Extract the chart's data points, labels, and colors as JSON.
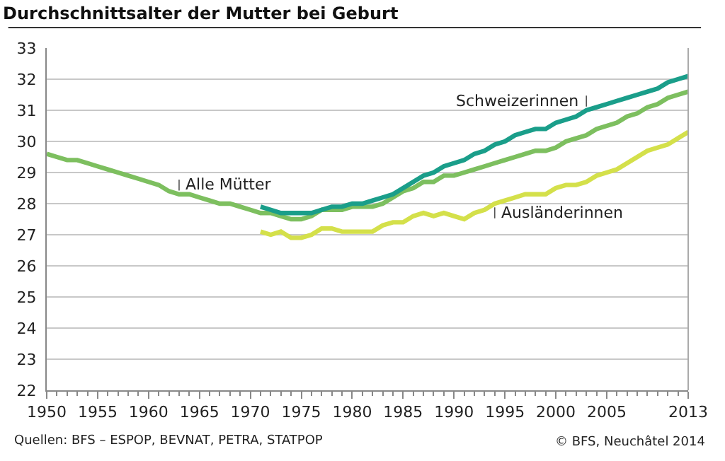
{
  "chart_data": {
    "type": "line",
    "title": "Durchschnittsalter der Mutter bei Geburt",
    "xlim": [
      1950,
      2013
    ],
    "xticks": [
      1950,
      1955,
      1960,
      1965,
      1970,
      1975,
      1980,
      1985,
      1990,
      1995,
      2000,
      2005,
      2013
    ],
    "ylim": [
      22,
      33
    ],
    "yticks": [
      22,
      23,
      24,
      25,
      26,
      27,
      28,
      29,
      30,
      31,
      32,
      33
    ],
    "grid": "y",
    "legend": false,
    "marker": "none",
    "line_style": "solid",
    "annotations": [
      "Quellen: BFS – ESPOP, BEVNAT, PETRA, STATPOP",
      "© BFS, Neuchâtel 2014"
    ],
    "series": [
      {
        "name": "Alle Mütter",
        "color": "#7dbf5f",
        "x": [
          1950,
          1951,
          1952,
          1953,
          1954,
          1955,
          1956,
          1957,
          1958,
          1959,
          1960,
          1961,
          1962,
          1963,
          1964,
          1965,
          1966,
          1967,
          1968,
          1969,
          1970,
          1971,
          1972,
          1973,
          1974,
          1975,
          1976,
          1977,
          1978,
          1979,
          1980,
          1981,
          1982,
          1983,
          1984,
          1985,
          1986,
          1987,
          1988,
          1989,
          1990,
          1991,
          1992,
          1993,
          1994,
          1995,
          1996,
          1997,
          1998,
          1999,
          2000,
          2001,
          2002,
          2003,
          2004,
          2005,
          2006,
          2007,
          2008,
          2009,
          2010,
          2011,
          2012,
          2013
        ],
        "values": [
          29.6,
          29.5,
          29.4,
          29.4,
          29.3,
          29.2,
          29.1,
          29.0,
          28.9,
          28.8,
          28.7,
          28.6,
          28.4,
          28.3,
          28.3,
          28.2,
          28.1,
          28.0,
          28.0,
          27.9,
          27.8,
          27.7,
          27.7,
          27.6,
          27.5,
          27.5,
          27.6,
          27.8,
          27.8,
          27.8,
          27.9,
          27.9,
          27.9,
          28.0,
          28.2,
          28.4,
          28.5,
          28.7,
          28.7,
          28.9,
          28.9,
          29.0,
          29.1,
          29.2,
          29.3,
          29.4,
          29.5,
          29.6,
          29.7,
          29.7,
          29.8,
          30.0,
          30.1,
          30.2,
          30.4,
          30.5,
          30.6,
          30.8,
          30.9,
          31.1,
          31.2,
          31.4,
          31.5,
          31.6
        ]
      },
      {
        "name": "Schweizerinnen",
        "color": "#1a9e8a",
        "x": [
          1971,
          1972,
          1973,
          1974,
          1975,
          1976,
          1977,
          1978,
          1979,
          1980,
          1981,
          1982,
          1983,
          1984,
          1985,
          1986,
          1987,
          1988,
          1989,
          1990,
          1991,
          1992,
          1993,
          1994,
          1995,
          1996,
          1997,
          1998,
          1999,
          2000,
          2001,
          2002,
          2003,
          2004,
          2005,
          2006,
          2007,
          2008,
          2009,
          2010,
          2011,
          2012,
          2013
        ],
        "values": [
          27.9,
          27.8,
          27.7,
          27.7,
          27.7,
          27.7,
          27.8,
          27.9,
          27.9,
          28.0,
          28.0,
          28.1,
          28.2,
          28.3,
          28.5,
          28.7,
          28.9,
          29.0,
          29.2,
          29.3,
          29.4,
          29.6,
          29.7,
          29.9,
          30.0,
          30.2,
          30.3,
          30.4,
          30.4,
          30.6,
          30.7,
          30.8,
          31.0,
          31.1,
          31.2,
          31.3,
          31.4,
          31.5,
          31.6,
          31.7,
          31.9,
          32.0,
          32.1
        ]
      },
      {
        "name": "Ausländerinnen",
        "color": "#d4e04a",
        "x": [
          1971,
          1972,
          1973,
          1974,
          1975,
          1976,
          1977,
          1978,
          1979,
          1980,
          1981,
          1982,
          1983,
          1984,
          1985,
          1986,
          1987,
          1988,
          1989,
          1990,
          1991,
          1992,
          1993,
          1994,
          1995,
          1996,
          1997,
          1998,
          1999,
          2000,
          2001,
          2002,
          2003,
          2004,
          2005,
          2006,
          2007,
          2008,
          2009,
          2010,
          2011,
          2012,
          2013
        ],
        "values": [
          27.1,
          27.0,
          27.1,
          26.9,
          26.9,
          27.0,
          27.2,
          27.2,
          27.1,
          27.1,
          27.1,
          27.1,
          27.3,
          27.4,
          27.4,
          27.6,
          27.7,
          27.6,
          27.7,
          27.6,
          27.5,
          27.7,
          27.8,
          28.0,
          28.1,
          28.2,
          28.3,
          28.3,
          28.3,
          28.5,
          28.6,
          28.6,
          28.7,
          28.9,
          29.0,
          29.1,
          29.3,
          29.5,
          29.7,
          29.8,
          29.9,
          30.1,
          30.3
        ]
      }
    ]
  }
}
